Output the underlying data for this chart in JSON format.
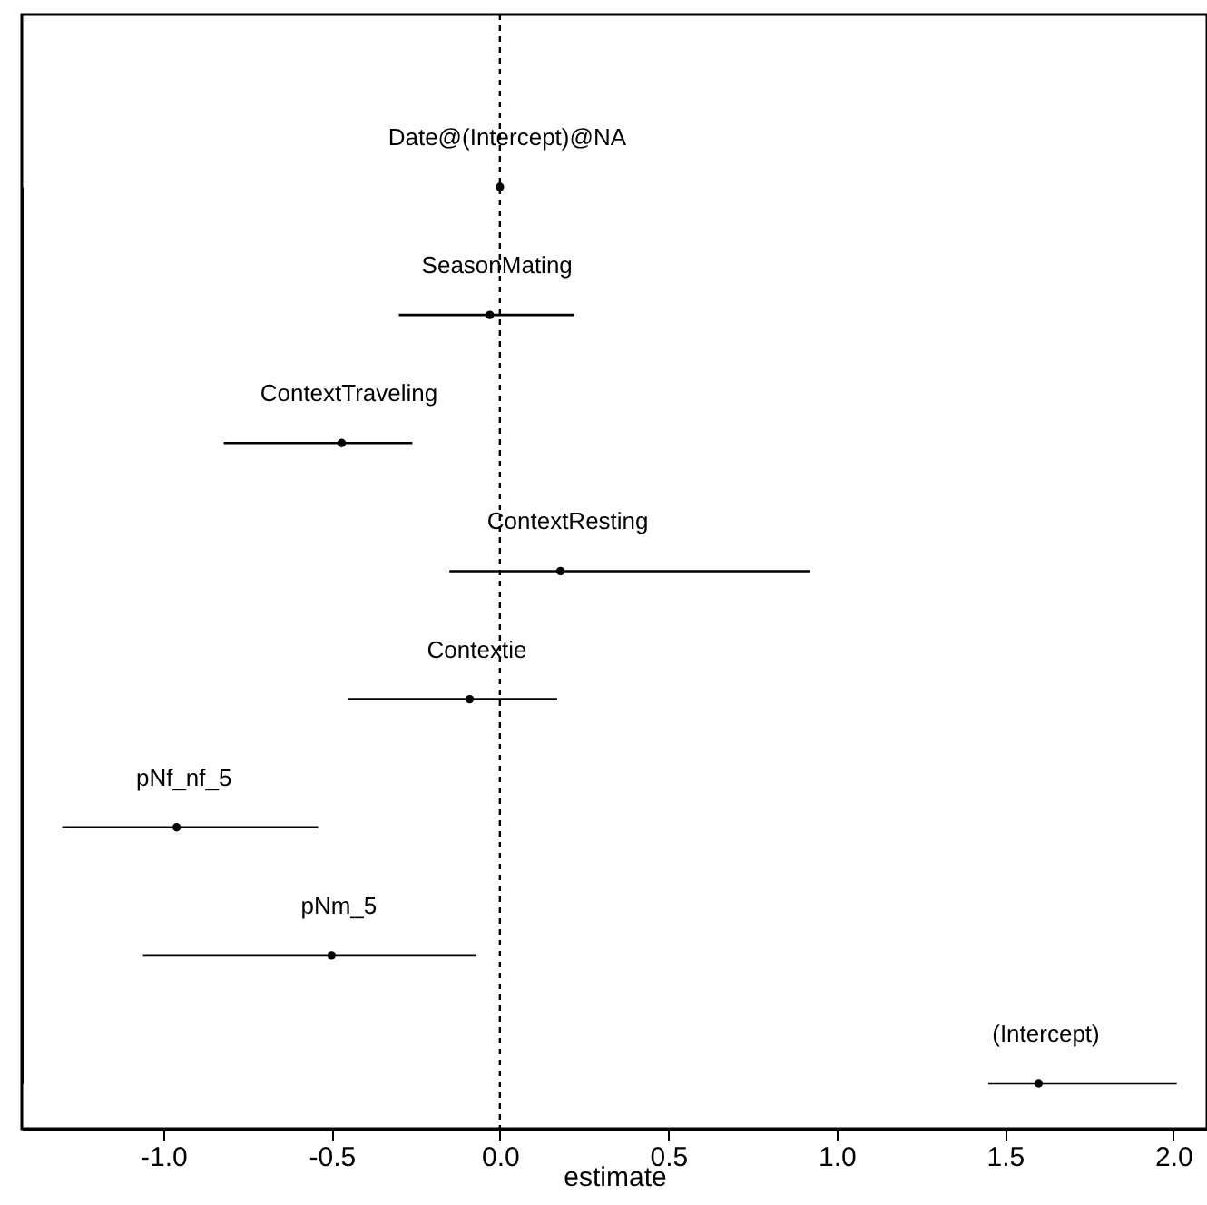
{
  "chart_data": {
    "type": "scatter",
    "orientation": "horizontal",
    "xlabel": "estimate",
    "categories": [
      "Date@(Intercept)@NA",
      "SeasonMating",
      "ContextTraveling",
      "ContextResting",
      "Contextie",
      "pNf_nf_5",
      "pNm_5",
      "(Intercept)"
    ],
    "values": [
      0.0,
      -0.03,
      -0.47,
      0.18,
      -0.09,
      -0.96,
      -0.5,
      1.6
    ],
    "errors": [
      [
        -0.01,
        0.01
      ],
      [
        -0.3,
        0.22
      ],
      [
        -0.82,
        -0.26
      ],
      [
        -0.15,
        0.92
      ],
      [
        -0.45,
        0.17
      ],
      [
        -1.3,
        -0.54
      ],
      [
        -1.06,
        -0.07
      ],
      [
        1.45,
        2.01
      ]
    ],
    "color": "#000000",
    "marker": "circle",
    "xlim": [
      -1.42,
      2.1
    ],
    "xticks": [
      {
        "value": -1,
        "label": "-1.0"
      },
      {
        "value": -0.5,
        "label": "-0.5"
      },
      {
        "value": 0,
        "label": "0.0"
      },
      {
        "value": 0.5,
        "label": "0.5"
      },
      {
        "value": 1,
        "label": "1.0"
      },
      {
        "value": 1.5,
        "label": "1.5"
      },
      {
        "value": 2,
        "label": "2.0"
      }
    ],
    "ref_lines": [
      {
        "axis": "x",
        "value": 0,
        "line_style": "dotted",
        "color": "#000000"
      }
    ],
    "tick_labels": "x",
    "grid": false
  }
}
